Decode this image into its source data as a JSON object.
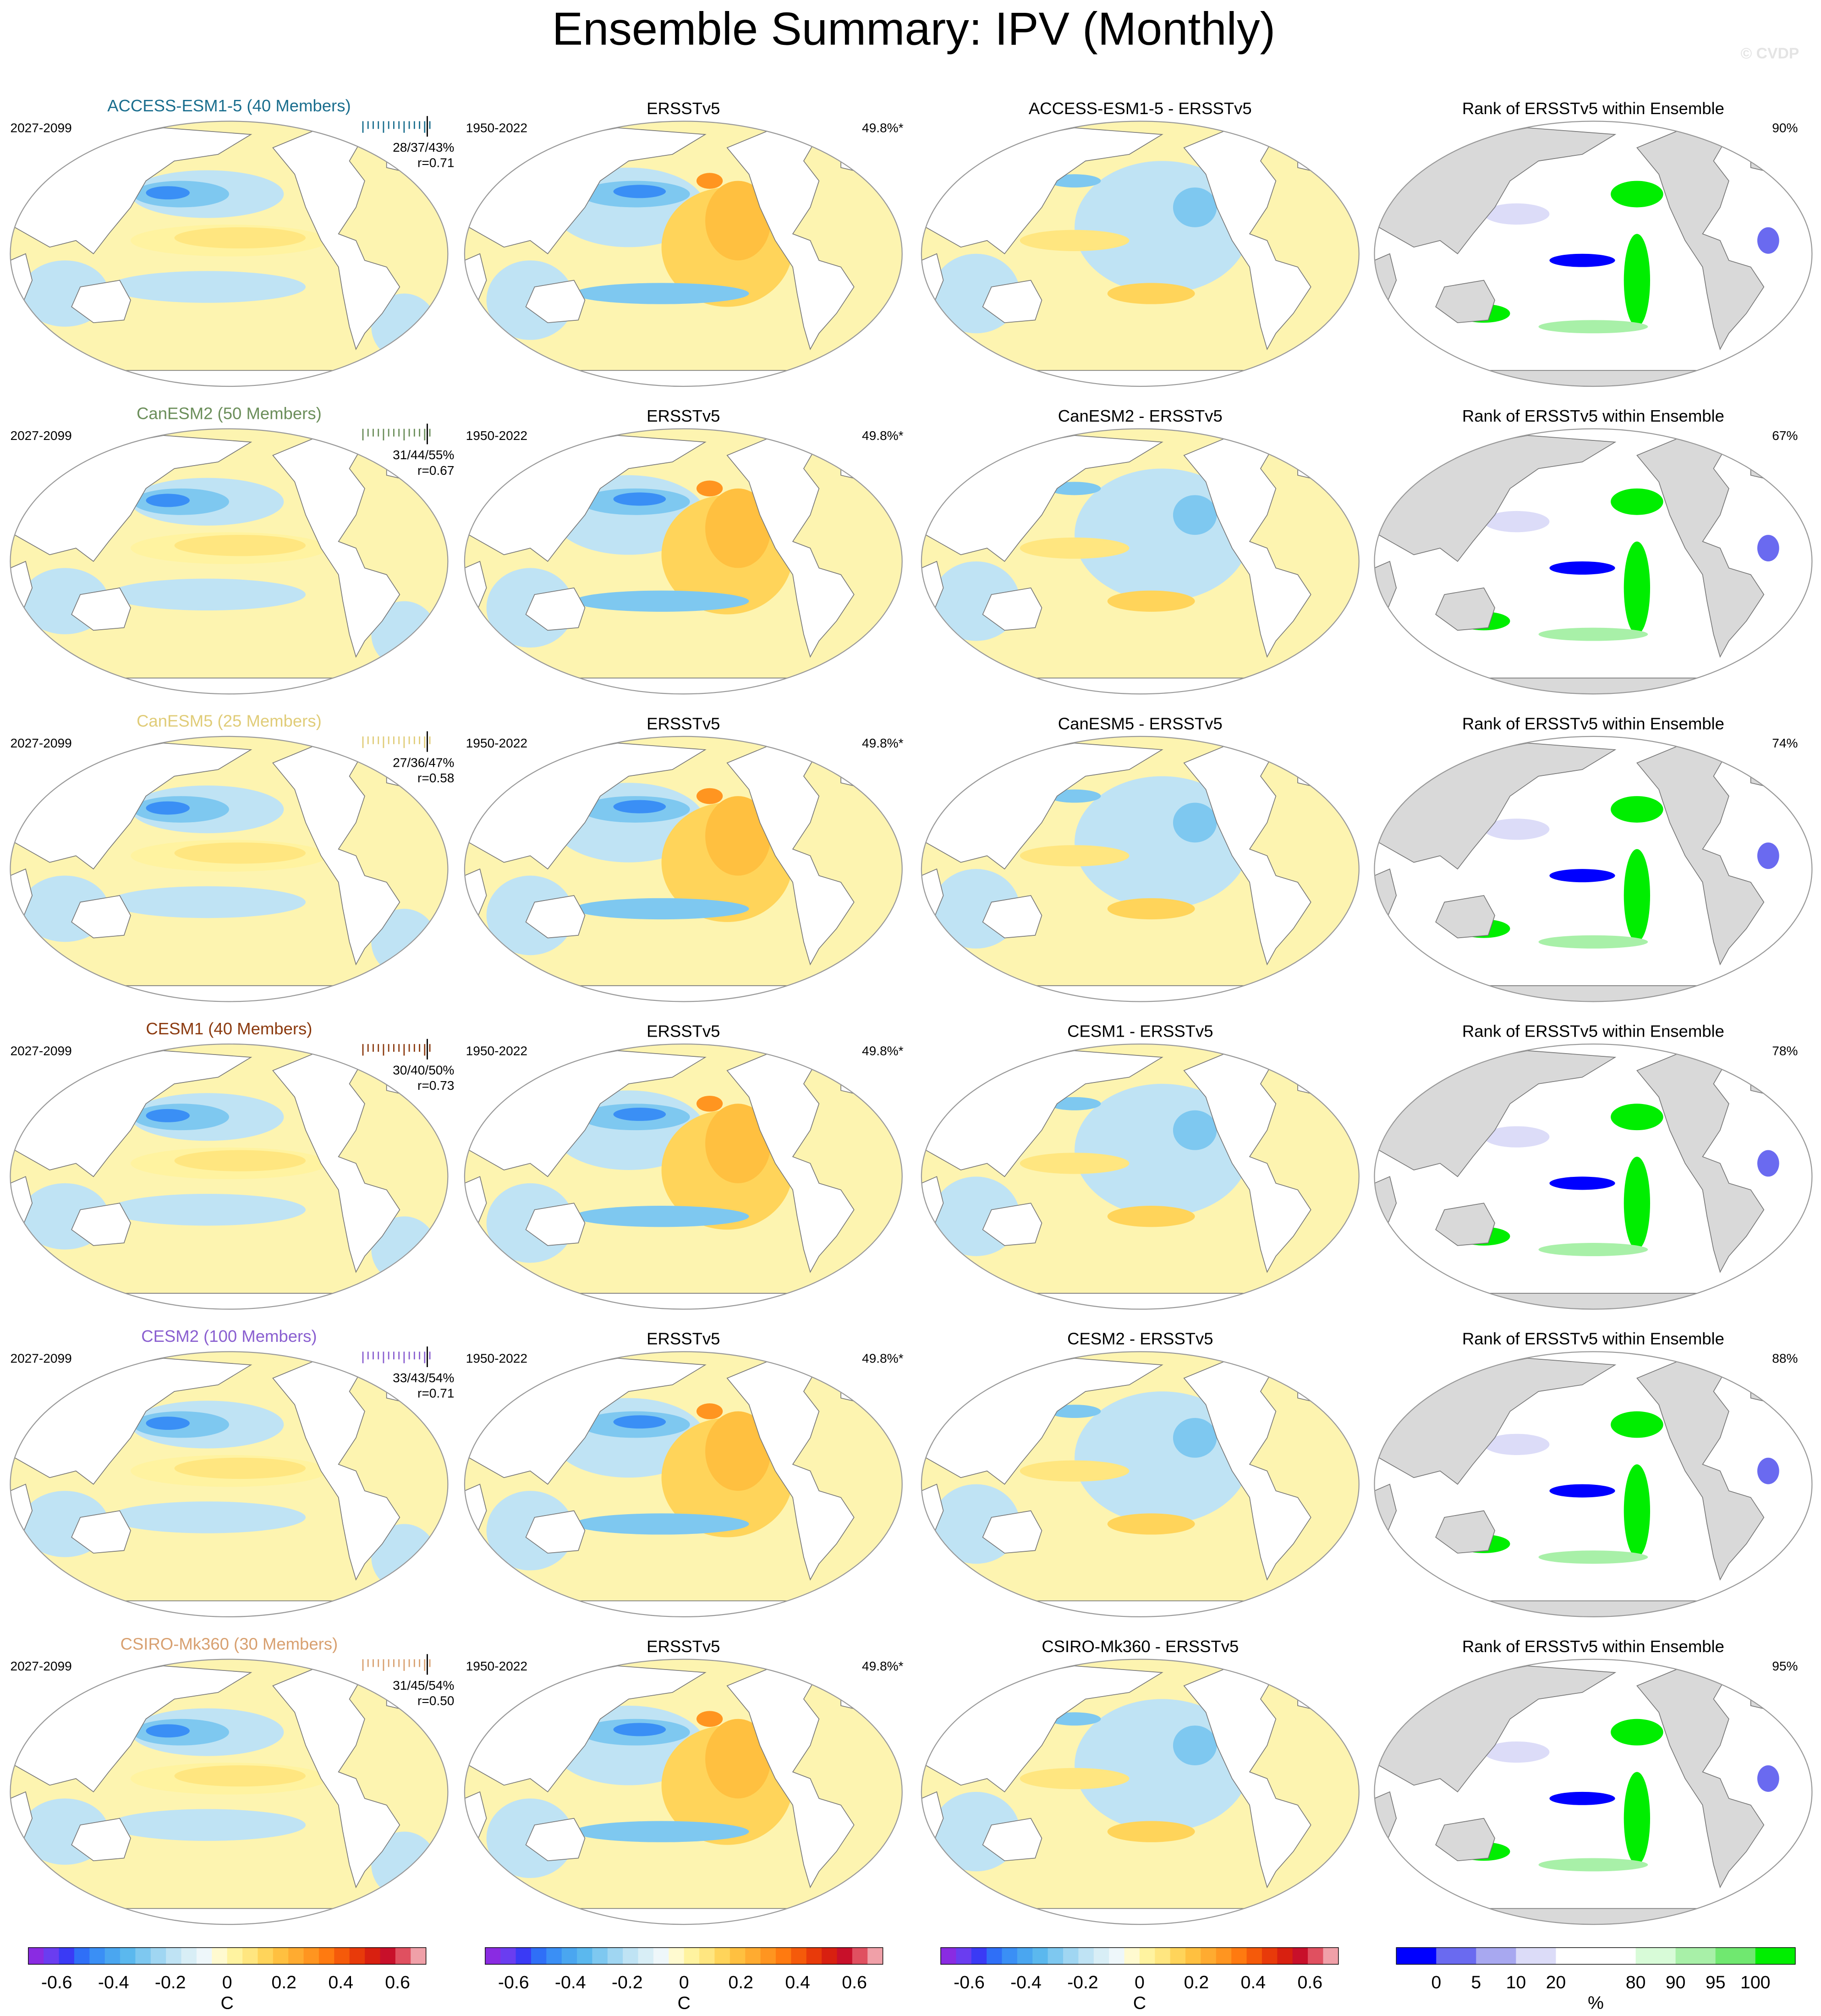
{
  "title": "Ensemble Summary: IPV (Monthly)",
  "watermark": "© CVDP",
  "rows": [
    {
      "model": "ACCESS-ESM1-5 (40 Members)",
      "model_color": "#1a6e8e",
      "period": "2027-2099",
      "stats": "28/37/43%",
      "r": "r=0.71",
      "obs_title": "ERSSTv5",
      "obs_period": "1950-2022",
      "obs_pct": "49.8%*",
      "diff_title": "ACCESS-ESM1-5 - ERSSTv5",
      "rank_title": "Rank of ERSSTv5 within Ensemble",
      "rank_pct": "90%"
    },
    {
      "model": "CanESM2 (50 Members)",
      "model_color": "#6b8e5a",
      "period": "2027-2099",
      "stats": "31/44/55%",
      "r": "r=0.67",
      "obs_title": "ERSSTv5",
      "obs_period": "1950-2022",
      "obs_pct": "49.8%*",
      "diff_title": "CanESM2 - ERSSTv5",
      "rank_title": "Rank of ERSSTv5 within Ensemble",
      "rank_pct": "67%"
    },
    {
      "model": "CanESM5 (25 Members)",
      "model_color": "#e0cc78",
      "period": "2027-2099",
      "stats": "27/36/47%",
      "r": "r=0.58",
      "obs_title": "ERSSTv5",
      "obs_period": "1950-2022",
      "obs_pct": "49.8%*",
      "diff_title": "CanESM5 - ERSSTv5",
      "rank_title": "Rank of ERSSTv5 within Ensemble",
      "rank_pct": "74%"
    },
    {
      "model": "CESM1 (40 Members)",
      "model_color": "#8b3a0f",
      "period": "2027-2099",
      "stats": "30/40/50%",
      "r": "r=0.73",
      "obs_title": "ERSSTv5",
      "obs_period": "1950-2022",
      "obs_pct": "49.8%*",
      "diff_title": "CESM1 - ERSSTv5",
      "rank_title": "Rank of ERSSTv5 within Ensemble",
      "rank_pct": "78%"
    },
    {
      "model": "CESM2 (100 Members)",
      "model_color": "#8a5fd0",
      "period": "2027-2099",
      "stats": "33/43/54%",
      "r": "r=0.71",
      "obs_title": "ERSSTv5",
      "obs_period": "1950-2022",
      "obs_pct": "49.8%*",
      "diff_title": "CESM2 - ERSSTv5",
      "rank_title": "Rank of ERSSTv5 within Ensemble",
      "rank_pct": "88%"
    },
    {
      "model": "CSIRO-Mk360 (30 Members)",
      "model_color": "#d8a070",
      "period": "2027-2099",
      "stats": "31/45/54%",
      "r": "r=0.50",
      "obs_title": "ERSSTv5",
      "obs_period": "1950-2022",
      "obs_pct": "49.8%*",
      "diff_title": "CSIRO-Mk360 - ERSSTv5",
      "rank_title": "Rank of ERSSTv5 within Ensemble",
      "rank_pct": "95%"
    }
  ],
  "colorbars": [
    {
      "lim": [
        -0.7,
        0.7
      ],
      "ticks": [
        -0.6,
        -0.4,
        -0.2,
        0,
        0.2,
        0.4,
        0.6
      ],
      "unit": "C",
      "colors": [
        "#8a2be2",
        "#6a3df0",
        "#3a3af5",
        "#2f6ff7",
        "#3a8ff5",
        "#4aa6f0",
        "#5bb8ee",
        "#7ec8f0",
        "#a0d6f2",
        "#bfe3f4",
        "#d8eef6",
        "#eef7fa",
        "#fffad0",
        "#fff3a0",
        "#ffe680",
        "#ffd45a",
        "#ffc040",
        "#ffab30",
        "#ff9520",
        "#ff7a10",
        "#f55a0a",
        "#e83a0a",
        "#d82010",
        "#c8102a",
        "#e05060",
        "#f0a0a8"
      ]
    },
    {
      "lim": [
        -0.7,
        0.7
      ],
      "ticks": [
        -0.6,
        -0.4,
        -0.2,
        0,
        0.2,
        0.4,
        0.6
      ],
      "unit": "C",
      "colors": [
        "#8a2be2",
        "#6a3df0",
        "#3a3af5",
        "#2f6ff7",
        "#3a8ff5",
        "#4aa6f0",
        "#5bb8ee",
        "#7ec8f0",
        "#a0d6f2",
        "#bfe3f4",
        "#d8eef6",
        "#eef7fa",
        "#fffad0",
        "#fff3a0",
        "#ffe680",
        "#ffd45a",
        "#ffc040",
        "#ffab30",
        "#ff9520",
        "#ff7a10",
        "#f55a0a",
        "#e83a0a",
        "#d82010",
        "#c8102a",
        "#e05060",
        "#f0a0a8"
      ]
    },
    {
      "lim": [
        -0.7,
        0.7
      ],
      "ticks": [
        -0.6,
        -0.4,
        -0.2,
        0,
        0.2,
        0.4,
        0.6
      ],
      "unit": "C",
      "colors": [
        "#8a2be2",
        "#6a3df0",
        "#3a3af5",
        "#2f6ff7",
        "#3a8ff5",
        "#4aa6f0",
        "#5bb8ee",
        "#7ec8f0",
        "#a0d6f2",
        "#bfe3f4",
        "#d8eef6",
        "#eef7fa",
        "#fffad0",
        "#fff3a0",
        "#ffe680",
        "#ffd45a",
        "#ffc040",
        "#ffab30",
        "#ff9520",
        "#ff7a10",
        "#f55a0a",
        "#e83a0a",
        "#d82010",
        "#c8102a",
        "#e05060",
        "#f0a0a8"
      ]
    },
    {
      "ticks": [
        0,
        5,
        10,
        20,
        80,
        90,
        95,
        100
      ],
      "unit": "%",
      "colors": [
        "#0000ff",
        "#6a6af0",
        "#a8a8f0",
        "#dcdcf8",
        "#ffffff",
        "#ffffff",
        "#d8fbd8",
        "#a8f0a8",
        "#70e870",
        "#00ee00"
      ]
    }
  ]
}
